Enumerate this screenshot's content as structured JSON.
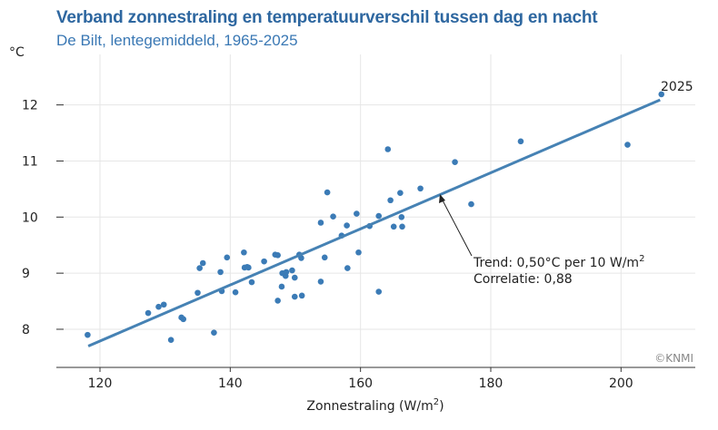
{
  "chart_data": {
    "type": "scatter",
    "title": "Verband zonnestraling en temperatuurverschil tussen dag en nacht",
    "subtitle": "De Bilt, lentegemiddeld, 1965-2025",
    "xlabel": "Zonnestraling (W/m²)",
    "ylabel": "°C",
    "xlim": [
      113.3,
      211.4
    ],
    "ylim": [
      7.32,
      12.9
    ],
    "xticks": [
      "120",
      "140",
      "160",
      "180",
      "200"
    ],
    "yticks": [
      "8",
      "9",
      "10",
      "11",
      "12"
    ],
    "grid": true,
    "colors": {
      "points": "#3b7bb6",
      "trend": "#4682b4",
      "title": "#2e67a0"
    },
    "points": [
      [
        118.1,
        7.9
      ],
      [
        127.4,
        8.29
      ],
      [
        129.0,
        8.4
      ],
      [
        129.8,
        8.44
      ],
      [
        130.9,
        7.81
      ],
      [
        132.5,
        8.21
      ],
      [
        132.8,
        8.18
      ],
      [
        135.0,
        8.65
      ],
      [
        135.3,
        9.09
      ],
      [
        135.8,
        9.18
      ],
      [
        137.5,
        7.94
      ],
      [
        138.5,
        9.02
      ],
      [
        138.7,
        8.68
      ],
      [
        139.5,
        9.28
      ],
      [
        140.8,
        8.66
      ],
      [
        142.1,
        9.37
      ],
      [
        142.2,
        9.1
      ],
      [
        142.6,
        9.11
      ],
      [
        142.8,
        9.1
      ],
      [
        143.3,
        8.84
      ],
      [
        145.2,
        9.21
      ],
      [
        146.9,
        9.33
      ],
      [
        147.3,
        9.32
      ],
      [
        147.3,
        8.51
      ],
      [
        147.9,
        8.76
      ],
      [
        148.0,
        9.0
      ],
      [
        148.5,
        8.95
      ],
      [
        148.6,
        9.02
      ],
      [
        149.5,
        9.05
      ],
      [
        149.9,
        8.92
      ],
      [
        149.9,
        8.58
      ],
      [
        150.6,
        9.33
      ],
      [
        150.9,
        9.27
      ],
      [
        151.0,
        8.6
      ],
      [
        153.9,
        9.9
      ],
      [
        153.9,
        8.85
      ],
      [
        154.5,
        9.28
      ],
      [
        154.9,
        10.44
      ],
      [
        155.8,
        10.01
      ],
      [
        157.1,
        9.67
      ],
      [
        157.9,
        9.85
      ],
      [
        158.0,
        9.09
      ],
      [
        159.4,
        10.06
      ],
      [
        159.7,
        9.37
      ],
      [
        161.4,
        9.84
      ],
      [
        162.8,
        10.02
      ],
      [
        162.8,
        8.67
      ],
      [
        164.6,
        10.3
      ],
      [
        165.1,
        9.83
      ],
      [
        166.1,
        10.43
      ],
      [
        166.3,
        10.0
      ],
      [
        166.4,
        9.83
      ],
      [
        164.2,
        11.21
      ],
      [
        169.2,
        10.51
      ],
      [
        174.5,
        10.98
      ],
      [
        177.0,
        10.23
      ],
      [
        184.6,
        11.35
      ],
      [
        201.0,
        11.29
      ],
      [
        206.2,
        12.19
      ]
    ],
    "trend": {
      "x": [
        118.2,
        206.0
      ],
      "y": [
        7.7,
        12.09
      ]
    },
    "annotations": {
      "trend_line1": "Trend: 0,50°C per 10 W/m",
      "trend_sup": "2",
      "correlation": "Correlatie: 0,88",
      "last_year": "2025",
      "credit": "©KNMI"
    }
  }
}
